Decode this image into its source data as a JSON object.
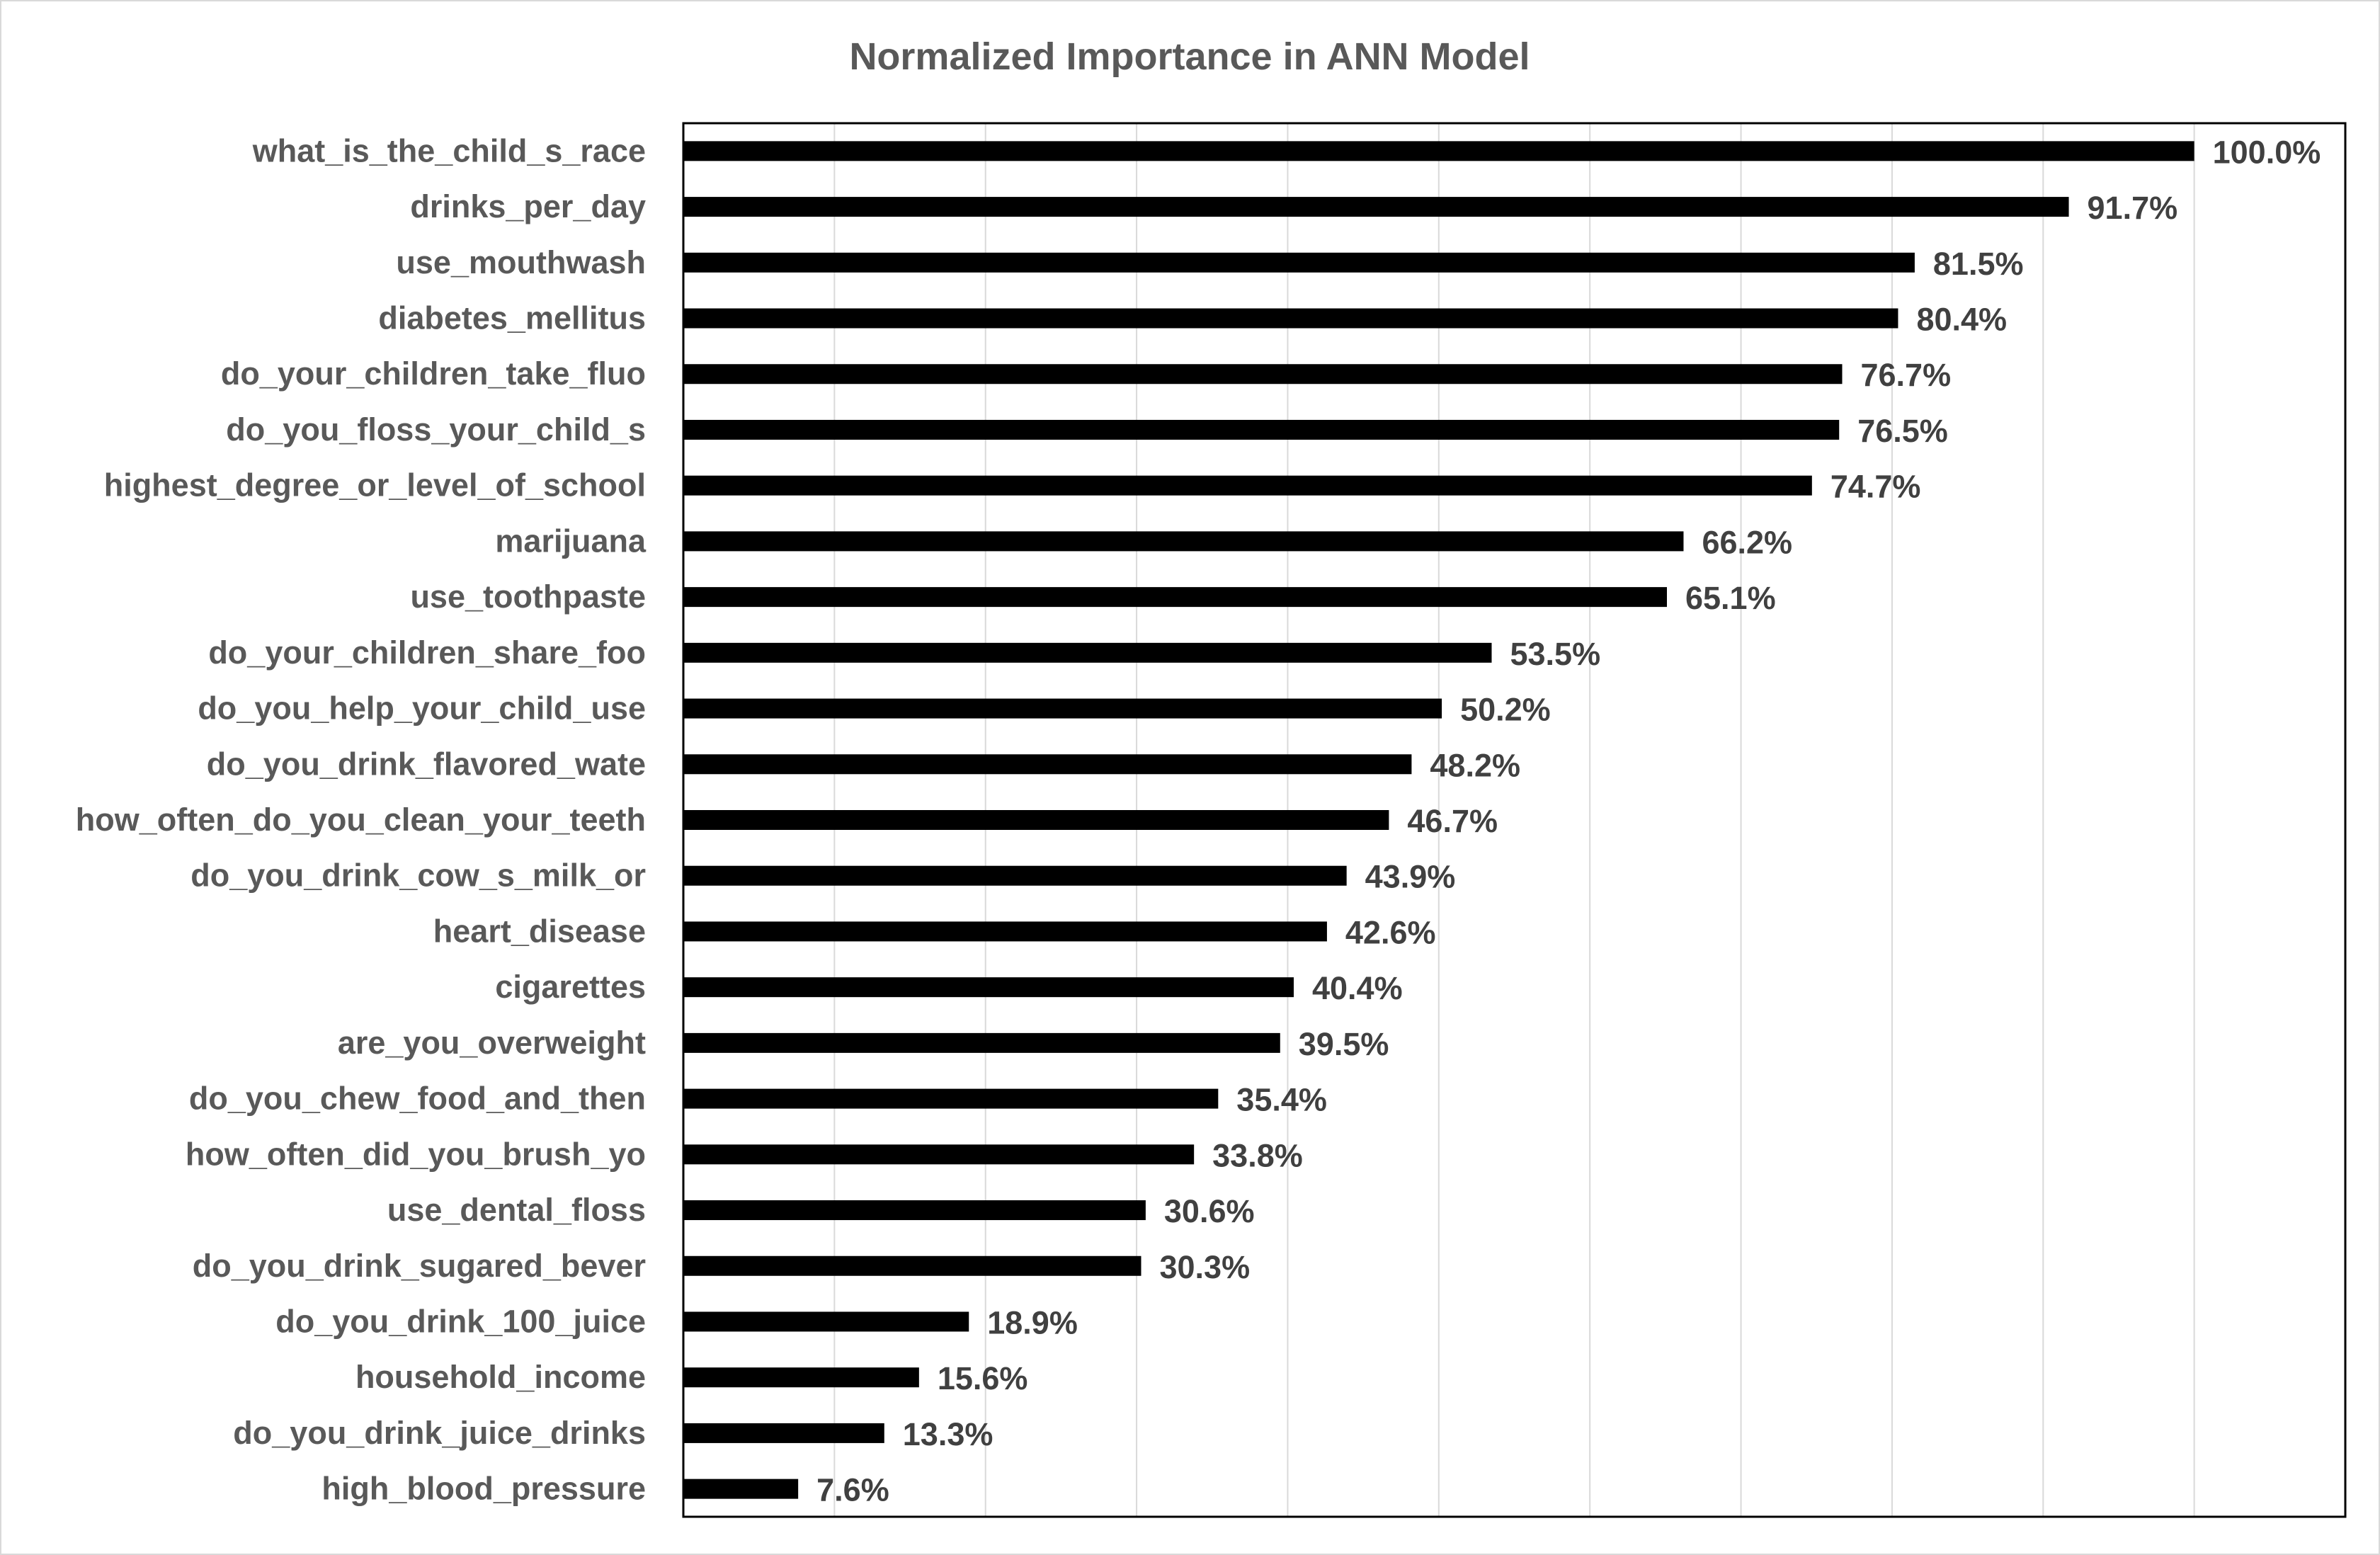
{
  "chart_data": {
    "type": "bar",
    "orientation": "horizontal",
    "title": "Normalized Importance in ANN Model",
    "xlabel": "",
    "ylabel": "",
    "xlim": [
      0,
      110
    ],
    "grid": true,
    "legend": "none",
    "bar_color": "#000000",
    "value_suffix": "%",
    "categories": [
      "what_is_the_child_s_race",
      "drinks_per_day",
      "use_mouthwash",
      "diabetes_mellitus",
      "do_your_children_take_fluo",
      "do_you_floss_your_child_s",
      "highest_degree_or_level_of_school",
      "marijuana",
      "use_toothpaste",
      "do_your_children_share_foo",
      "do_you_help_your_child_use",
      "do_you_drink_flavored_wate",
      "how_often_do_you_clean_your_teeth",
      "do_you_drink_cow_s_milk_or",
      "heart_disease",
      "cigarettes",
      "are_you_overweight",
      "do_you_chew_food_and_then",
      "how_often_did_you_brush_yo",
      "use_dental_floss",
      "do_you_drink_sugared_bever",
      "do_you_drink_100_juice",
      "household_income",
      "do_you_drink_juice_drinks",
      "high_blood_pressure"
    ],
    "values": [
      100.0,
      91.7,
      81.5,
      80.4,
      76.7,
      76.5,
      74.7,
      66.2,
      65.1,
      53.5,
      50.2,
      48.2,
      46.7,
      43.9,
      42.6,
      40.4,
      39.5,
      35.4,
      33.8,
      30.6,
      30.3,
      18.9,
      15.6,
      13.3,
      7.6
    ],
    "data_labels": [
      "100.0%",
      "91.7%",
      "81.5%",
      "80.4%",
      "76.7%",
      "76.5%",
      "74.7%",
      "66.2%",
      "65.1%",
      "53.5%",
      "50.2%",
      "48.2%",
      "46.7%",
      "43.9%",
      "42.6%",
      "40.4%",
      "39.5%",
      "35.4%",
      "33.8%",
      "30.6%",
      "30.3%",
      "18.9%",
      "15.6%",
      "13.3%",
      "7.6%"
    ]
  }
}
